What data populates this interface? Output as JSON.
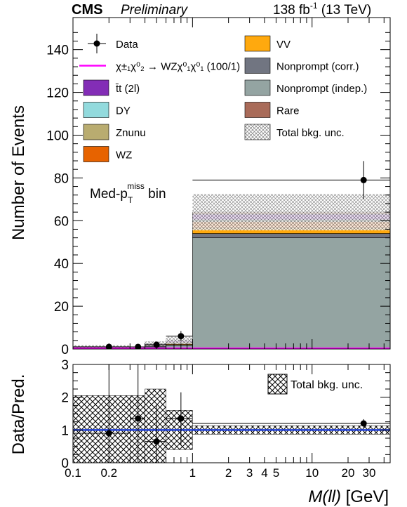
{
  "header": {
    "experiment": "CMS",
    "status": "Preliminary",
    "luminosity": "138 fb",
    "lumi_exp": "-1",
    "energy": " (13 TeV)"
  },
  "region_label": {
    "main": "Med-p",
    "sub": "T",
    "sup": "miss",
    "suffix": " bin"
  },
  "chart_data": [
    {
      "type": "bar",
      "subtype": "stacked-histogram-log-x",
      "ylabel": "Number of Events",
      "xscale": "log",
      "xlim": [
        0.1,
        45
      ],
      "ylim": [
        0,
        155
      ],
      "yticks": [
        0,
        20,
        40,
        60,
        80,
        100,
        120,
        140
      ],
      "bins": [
        [
          0.1,
          0.3
        ],
        [
          0.3,
          0.4
        ],
        [
          0.4,
          0.6
        ],
        [
          0.6,
          1.0
        ],
        [
          1.0,
          45
        ]
      ],
      "stack_order": [
        "nonprompt_indep",
        "nonprompt_corr",
        "vv",
        "wz",
        "znunu",
        "dy",
        "ttbar",
        "rare"
      ],
      "series": [
        {
          "key": "nonprompt_indep",
          "name": "Nonprompt (indep.)",
          "color": "#94a4a2",
          "values": [
            0.6,
            0.3,
            1.0,
            1.6,
            52.0
          ]
        },
        {
          "key": "nonprompt_corr",
          "name": "Nonprompt (corr.)",
          "color": "#717581",
          "values": [
            0.2,
            0.1,
            0.4,
            0.5,
            2.0
          ]
        },
        {
          "key": "vv",
          "name": "VV",
          "color": "#ffa90e",
          "values": [
            0.1,
            0.05,
            0.2,
            0.3,
            2.5
          ]
        },
        {
          "key": "wz",
          "name": "WZ",
          "color": "#e76300",
          "values": [
            0.1,
            0.05,
            0.3,
            0.5,
            3.0
          ]
        },
        {
          "key": "znunu",
          "name": "Znunu",
          "color": "#b9ac70",
          "values": [
            0.05,
            0.02,
            0.1,
            0.2,
            0.6
          ]
        },
        {
          "key": "dy",
          "name": "DY",
          "color": "#92dadd",
          "values": [
            0.05,
            0.02,
            0.1,
            0.1,
            0.4
          ]
        },
        {
          "key": "ttbar",
          "name": "t̄t (2l)",
          "color": "#832db6",
          "values": [
            0.1,
            0.05,
            0.3,
            0.6,
            2.5
          ]
        },
        {
          "key": "rare",
          "name": "Rare",
          "color": "#a96b59",
          "values": [
            0.05,
            0.02,
            0.1,
            0.2,
            1.0
          ]
        }
      ],
      "uncertainty": {
        "name": "Total bkg. unc.",
        "values": [
          0.6,
          0.4,
          1.1,
          1.7,
          8.5
        ]
      },
      "data": {
        "name": "Data",
        "x": [
          0.2,
          0.35,
          0.5,
          0.8,
          27
        ],
        "y": [
          1,
          1,
          2,
          6,
          79
        ],
        "yerr": [
          1.0,
          1.0,
          1.4,
          2.4,
          8.9
        ]
      },
      "signal": {
        "name": "χ±₁χ⁰₂ → WZχ⁰₁χ⁰₁ (100/1)",
        "color": "#ff00ff",
        "values": [
          0.3,
          0.3,
          0.3,
          0.3,
          0.3
        ]
      },
      "legend": {
        "placement": "top",
        "left": [
          {
            "key": "data",
            "label": "Data"
          },
          {
            "key": "signal",
            "label": "χ±₁χ⁰₂ → WZχ⁰₁χ⁰₁ (100/1)"
          },
          {
            "key": "ttbar",
            "label": "t̄t (2l)"
          },
          {
            "key": "dy",
            "label": "DY"
          },
          {
            "key": "znunu",
            "label": "Znunu"
          },
          {
            "key": "wz",
            "label": "WZ"
          }
        ],
        "right": [
          {
            "key": "vv",
            "label": "VV"
          },
          {
            "key": "nonprompt_corr",
            "label": "Nonprompt (corr.)"
          },
          {
            "key": "nonprompt_indep",
            "label": "Nonprompt (indep.)"
          },
          {
            "key": "rare",
            "label": "Rare"
          },
          {
            "key": "unc",
            "label": "Total bkg. unc."
          }
        ]
      }
    },
    {
      "type": "scatter",
      "subtype": "ratio",
      "ylabel": "Data/Pred.",
      "xlabel": "M(ll)",
      "xlabel_unit": " [GeV]",
      "xscale": "log",
      "xlim": [
        0.1,
        45
      ],
      "ylim": [
        0,
        3
      ],
      "yticks": [
        0,
        1,
        2,
        3
      ],
      "xtick_labels": [
        {
          "value": 0.1,
          "label": "0.1"
        },
        {
          "value": 0.2,
          "label": "0.2"
        },
        {
          "value": 1,
          "label": "1"
        },
        {
          "value": 2,
          "label": "2"
        },
        {
          "value": 3,
          "label": "3"
        },
        {
          "value": 4,
          "label": "4"
        },
        {
          "value": 5,
          "label": "5"
        },
        {
          "value": 10,
          "label": "10"
        },
        {
          "value": 20,
          "label": "20"
        },
        {
          "value": 30,
          "label": "30"
        }
      ],
      "reference_line": {
        "y": 1,
        "color": "#1f3fd6"
      },
      "uncertainty_band": {
        "name": "Total bkg. unc.",
        "bins": [
          [
            0.1,
            0.3
          ],
          [
            0.3,
            0.4
          ],
          [
            0.4,
            0.6
          ],
          [
            0.6,
            1.0
          ],
          [
            1.0,
            45
          ]
        ],
        "low": [
          0,
          0,
          0,
          0.4,
          0.87
        ],
        "high": [
          2.05,
          2.05,
          2.25,
          1.6,
          1.13
        ]
      },
      "points": {
        "x": [
          0.2,
          0.35,
          0.5,
          0.8,
          27
        ],
        "y": [
          0.9,
          1.35,
          0.65,
          1.35,
          1.2
        ],
        "yerr": [
          2.1,
          2.2,
          1.1,
          0.8,
          0.13
        ]
      },
      "legend": {
        "placement": "top-right",
        "label": "Total bkg. unc."
      }
    }
  ]
}
